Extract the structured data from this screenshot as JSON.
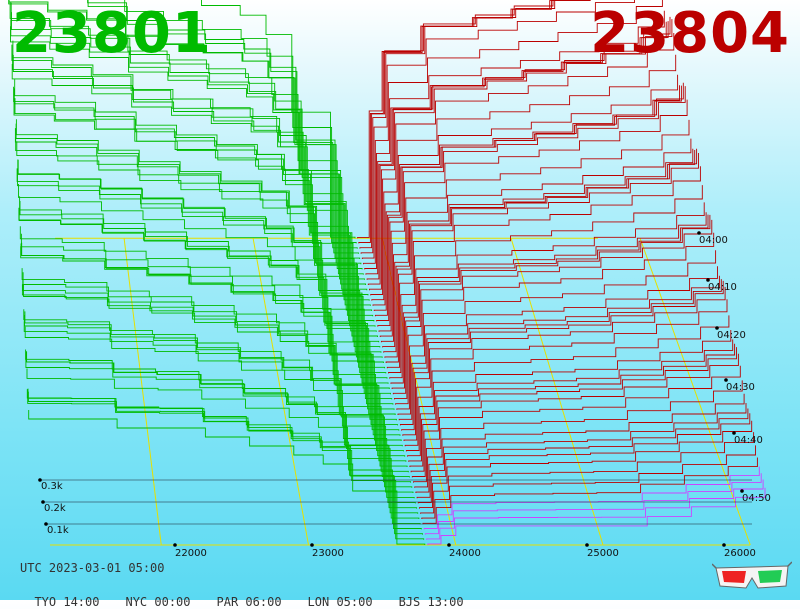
{
  "header": {
    "bid_price": "23801",
    "ask_price": "23804",
    "bid_color": "#00bb00",
    "ask_color": "#bb0000"
  },
  "footer": {
    "utc_label": "UTC 2023-03-01 05:00",
    "zones": [
      {
        "label": "TYO 14:00"
      },
      {
        "label": "NYC 00:00"
      },
      {
        "label": "PAR 06:00"
      },
      {
        "label": "LON 05:00"
      },
      {
        "label": "BJS 13:00"
      }
    ]
  },
  "icons": {
    "glasses": "3d-glasses-icon"
  },
  "chart_data": {
    "type": "area",
    "x_ticks": [
      "22000",
      "23000",
      "24000",
      "25000",
      "26000"
    ],
    "x_tick_values": [
      22000,
      23000,
      24000,
      25000,
      26000
    ],
    "depth_ticks": [
      "0.1k",
      "0.2k",
      "0.3k"
    ],
    "time_ticks": [
      "04:00",
      "04:10",
      "04:20",
      "04:30",
      "04:40",
      "04:50"
    ],
    "mid_price": 23802.5,
    "price_range": [
      21000,
      26100
    ],
    "snapshots": 60,
    "bid_series": {
      "name": "bid",
      "color": "#00bb00",
      "price": [
        23790,
        23600,
        23300,
        23100,
        22900,
        22600,
        22300,
        22000,
        21700,
        21400,
        21100
      ],
      "cumulative_depth_newest": [
        0.001,
        0.06,
        0.09,
        0.1,
        0.11,
        0.12,
        0.13,
        0.13,
        0.14,
        0.14,
        0.15
      ],
      "cumulative_depth_oldest": [
        0.001,
        0.13,
        0.21,
        0.23,
        0.24,
        0.25,
        0.26,
        0.28,
        0.29,
        0.3,
        0.32
      ]
    },
    "ask_series": {
      "name": "ask",
      "color": "#bb0000",
      "price": [
        23810,
        23900,
        24000,
        24300,
        24700,
        25000,
        25300,
        25600,
        25900,
        26100
      ],
      "cumulative_depth_newest": [
        0.001,
        0.01,
        0.02,
        0.02,
        0.02,
        0.02,
        0.03,
        0.04,
        0.05,
        0.06
      ],
      "cumulative_depth_oldest": [
        0.001,
        0.15,
        0.22,
        0.25,
        0.26,
        0.27,
        0.28,
        0.29,
        0.31,
        0.33
      ]
    }
  }
}
